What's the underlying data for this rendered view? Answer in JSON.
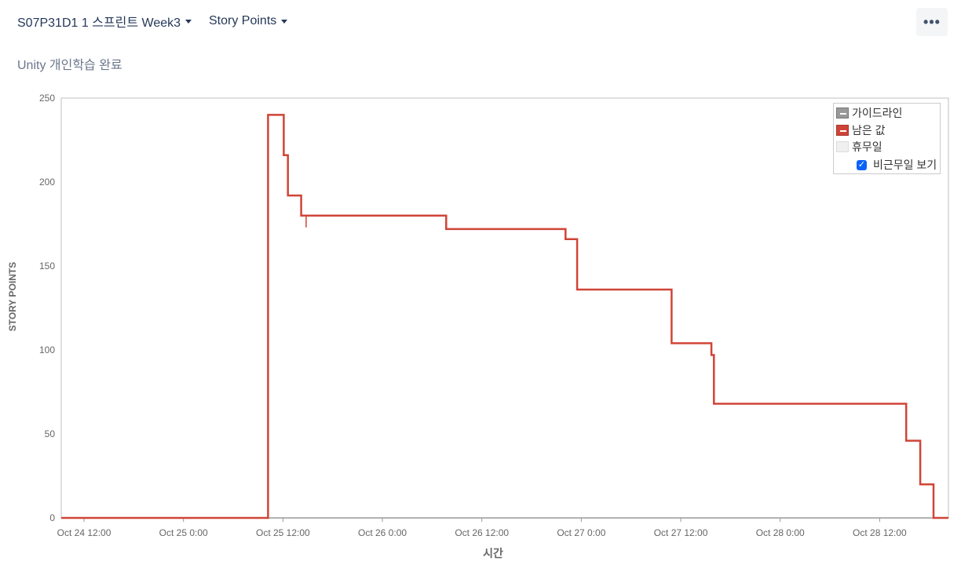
{
  "toolbar": {
    "sprint_label": "S07P31D1 1 스프린트 Week3",
    "metric_label": "Story Points",
    "more_label": "•••"
  },
  "subtitle": "Unity 개인학습 완료",
  "legend": {
    "items": [
      {
        "label": "가이드라인",
        "color": "#999999"
      },
      {
        "label": "남은 값",
        "color": "#d04437"
      },
      {
        "label": "휴무일",
        "color": "#f0f0f0"
      }
    ],
    "checkbox_label": "비근무일 보기",
    "checkbox_checked": true
  },
  "chart_data": {
    "type": "line",
    "xlabel": "시간",
    "ylabel": "STORY POINTS",
    "x_unit": "hours since Oct 24 00:00",
    "xlim": [
      9.25,
      116.3
    ],
    "ylim": [
      0,
      250
    ],
    "yticks": [
      0,
      50,
      100,
      150,
      200,
      250
    ],
    "xticks": [
      {
        "label": "Oct 24 12:00",
        "x": 12
      },
      {
        "label": "Oct 25 0:00",
        "x": 24
      },
      {
        "label": "Oct 25 12:00",
        "x": 36
      },
      {
        "label": "Oct 26 0:00",
        "x": 48
      },
      {
        "label": "Oct 26 12:00",
        "x": 60
      },
      {
        "label": "Oct 27 0:00",
        "x": 72
      },
      {
        "label": "Oct 27 12:00",
        "x": 84
      },
      {
        "label": "Oct 28 0:00",
        "x": 96
      },
      {
        "label": "Oct 28 12:00",
        "x": 108
      }
    ],
    "grid": false,
    "legend_position": "top-right",
    "series": [
      {
        "name": "남은 값",
        "color": "#d04437",
        "step": true,
        "points": [
          [
            9.25,
            0
          ],
          [
            34.2,
            0
          ],
          [
            34.2,
            240
          ],
          [
            36.1,
            240
          ],
          [
            36.1,
            216
          ],
          [
            36.6,
            216
          ],
          [
            36.6,
            192
          ],
          [
            38.2,
            192
          ],
          [
            38.2,
            180
          ],
          [
            46.5,
            180
          ],
          [
            55.7,
            180
          ],
          [
            55.7,
            172
          ],
          [
            70.1,
            172
          ],
          [
            70.1,
            166
          ],
          [
            71.5,
            166
          ],
          [
            71.5,
            136
          ],
          [
            82.9,
            136
          ],
          [
            82.9,
            104
          ],
          [
            87.7,
            104
          ],
          [
            87.7,
            97
          ],
          [
            88.0,
            97
          ],
          [
            88.0,
            68
          ],
          [
            111.2,
            68
          ],
          [
            111.2,
            46
          ],
          [
            112.9,
            46
          ],
          [
            112.9,
            20
          ],
          [
            114.5,
            20
          ],
          [
            114.5,
            0
          ],
          [
            116.3,
            0
          ]
        ],
        "dips": [
          [
            38.8,
            180,
            173
          ]
        ]
      }
    ]
  }
}
